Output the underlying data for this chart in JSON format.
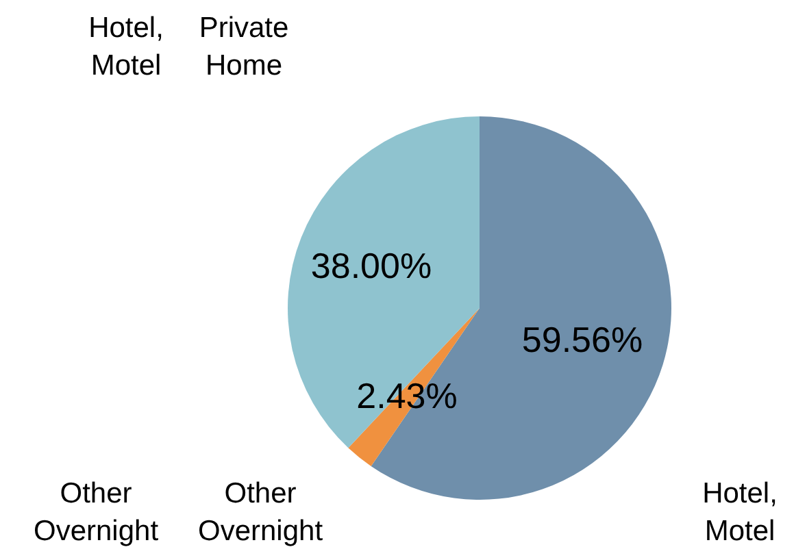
{
  "chart_data": {
    "type": "pie",
    "categories": [
      "Hotel, Motel",
      "Other Overnight",
      "Private Home"
    ],
    "values": [
      59.56,
      2.43,
      38.0
    ],
    "colors": [
      "#6f8fab",
      "#f0913f",
      "#8fc3cf"
    ],
    "value_labels": [
      "59.56%",
      "2.43%",
      "38.00%"
    ],
    "annotations": [
      "Hotel, Motel",
      "Other Overnight"
    ]
  }
}
